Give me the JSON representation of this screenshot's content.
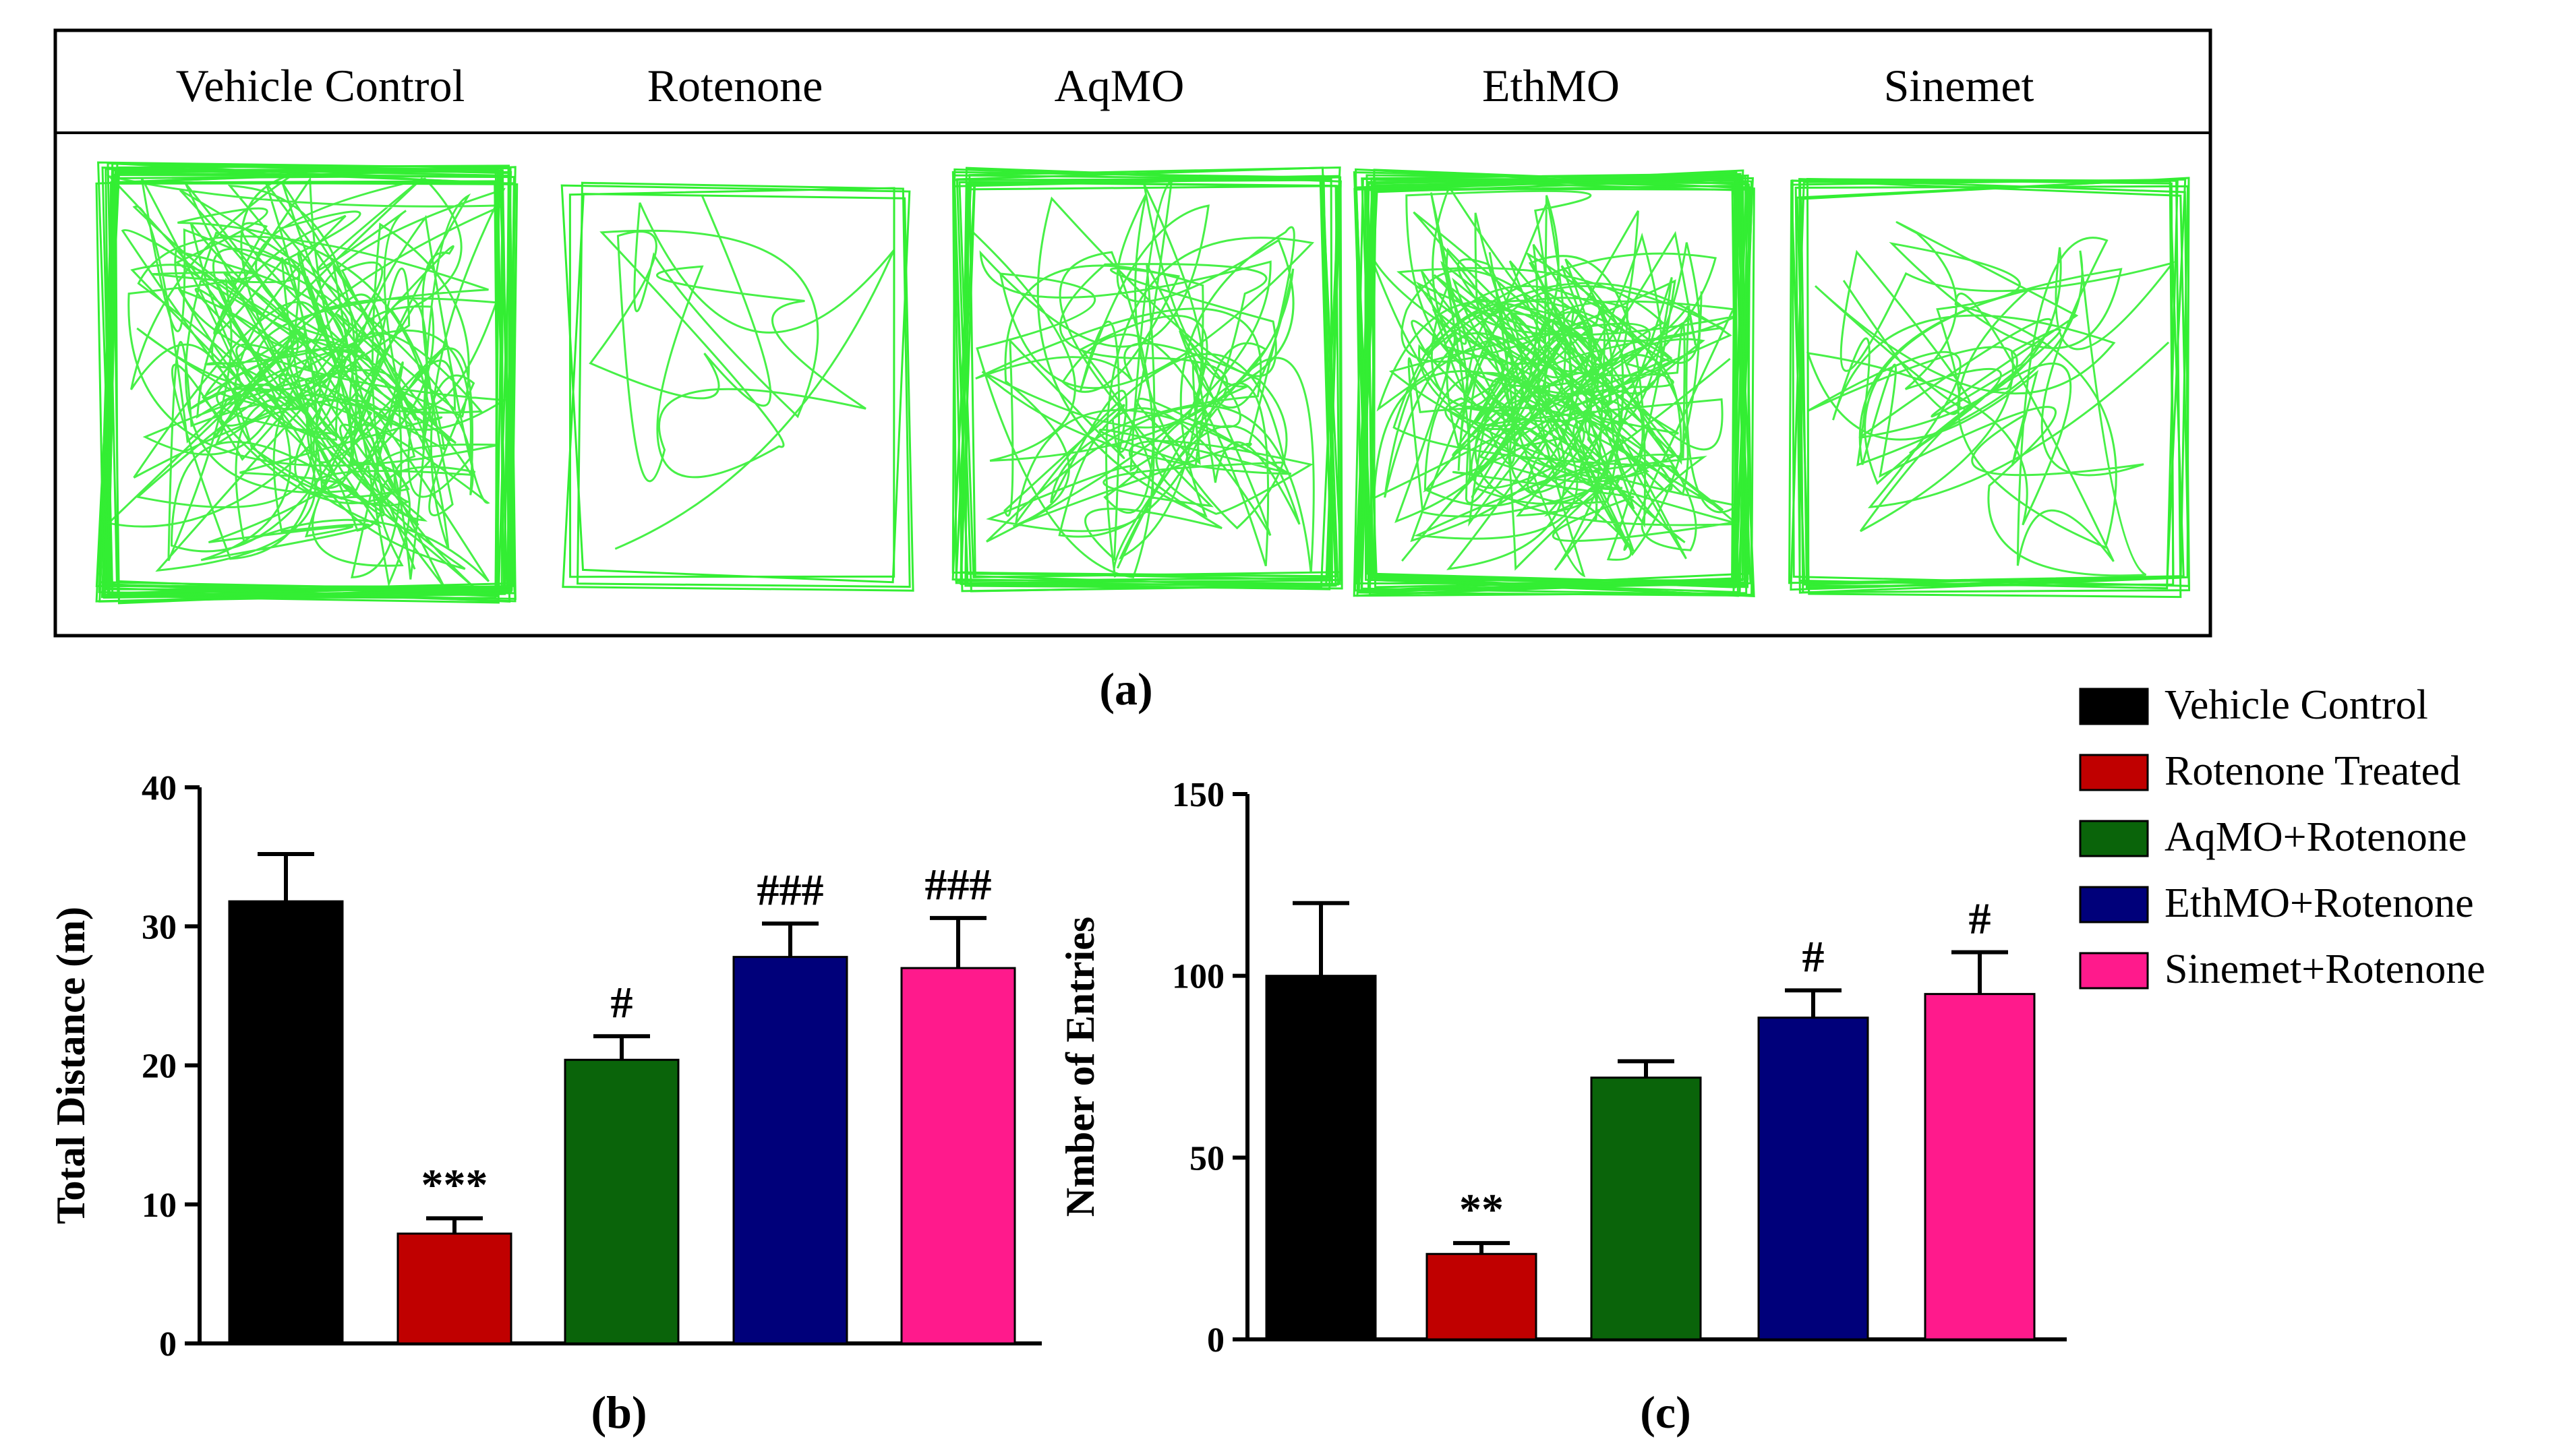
{
  "panel_a": {
    "label": "(a)",
    "groups": [
      {
        "name": "Vehicle Control",
        "activity": "high"
      },
      {
        "name": "Rotenone",
        "activity": "low"
      },
      {
        "name": "AqMO",
        "activity": "medium"
      },
      {
        "name": "EthMO",
        "activity": "high"
      },
      {
        "name": "Sinemet",
        "activity": "medium-low"
      }
    ],
    "track_color": "#33ee33"
  },
  "legend": {
    "items": [
      {
        "label": "Vehicle Control",
        "color": "#000000"
      },
      {
        "label": "Rotenone Treated",
        "color": "#c00000"
      },
      {
        "label": "AqMO+Rotenone",
        "color": "#0a640a"
      },
      {
        "label": "EthMO+Rotenone",
        "color": "#00007a"
      },
      {
        "label": "Sinemet+Rotenone",
        "color": "#ff1a8c"
      }
    ]
  },
  "chart_data": [
    {
      "type": "bar",
      "panel_label": "(b)",
      "ylabel": "Total Distance (m)",
      "xlabel": "",
      "ylim": [
        0,
        40
      ],
      "yticks": [
        0,
        10,
        20,
        30,
        40
      ],
      "categories": [
        "Vehicle Control",
        "Rotenone Treated",
        "AqMO+Rotenone",
        "EthMO+Rotenone",
        "Sinemet+Rotenone"
      ],
      "values": [
        31.8,
        7.9,
        20.4,
        27.8,
        27.0
      ],
      "errors": [
        3.4,
        1.1,
        1.7,
        2.4,
        3.6
      ],
      "annotations": [
        "",
        "***",
        "#",
        "###",
        "###"
      ],
      "colors": [
        "#000000",
        "#c00000",
        "#0a640a",
        "#00007a",
        "#ff1a8c"
      ]
    },
    {
      "type": "bar",
      "panel_label": "(c)",
      "ylabel": "Nmber of Entries",
      "xlabel": "",
      "ylim": [
        0,
        150
      ],
      "yticks": [
        0,
        50,
        100,
        150
      ],
      "categories": [
        "Vehicle Control",
        "Rotenone Treated",
        "AqMO+Rotenone",
        "EthMO+Rotenone",
        "Sinemet+Rotenone"
      ],
      "values": [
        100,
        23.5,
        72,
        88.5,
        95
      ],
      "errors": [
        20,
        3,
        4.5,
        7.5,
        11.5
      ],
      "annotations": [
        "",
        "**",
        "",
        "#",
        "#"
      ],
      "colors": [
        "#000000",
        "#c00000",
        "#0a640a",
        "#00007a",
        "#ff1a8c"
      ]
    }
  ]
}
